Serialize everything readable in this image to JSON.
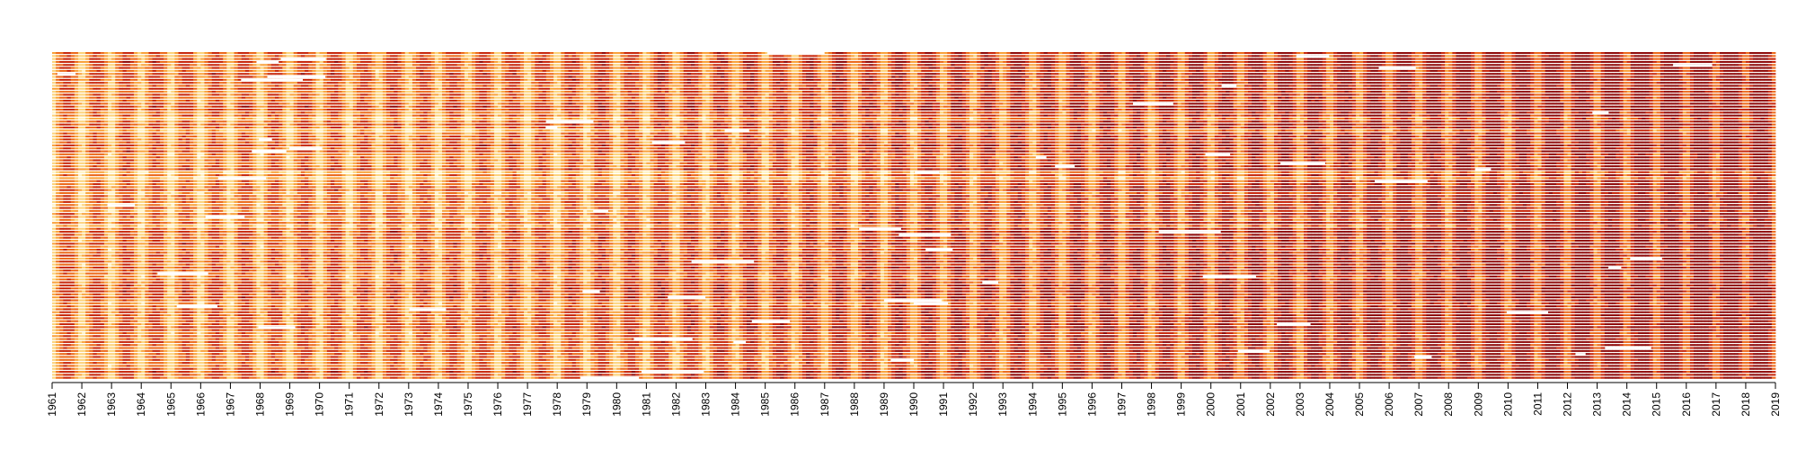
{
  "chart_data": {
    "type": "heatmap",
    "title": "",
    "xlabel": "",
    "ylabel": "",
    "x_range": [
      1961,
      2019
    ],
    "tick_labels": [
      "1961",
      "1962",
      "1963",
      "1964",
      "1965",
      "1966",
      "1967",
      "1968",
      "1969",
      "1970",
      "1971",
      "1972",
      "1973",
      "1974",
      "1975",
      "1976",
      "1977",
      "1978",
      "1979",
      "1980",
      "1981",
      "1982",
      "1983",
      "1984",
      "1985",
      "1986",
      "1987",
      "1988",
      "1989",
      "1990",
      "1991",
      "1992",
      "1993",
      "1994",
      "1995",
      "1996",
      "1997",
      "1998",
      "1999",
      "2000",
      "2001",
      "2002",
      "2003",
      "2004",
      "2005",
      "2006",
      "2007",
      "2008",
      "2009",
      "2010",
      "2011",
      "2012",
      "2013",
      "2014",
      "2015",
      "2016",
      "2017",
      "2018",
      "2019"
    ],
    "row_count": 110,
    "color_scale": [
      "#fff3c4",
      "#fcd37a",
      "#f9a23b",
      "#ec6a1c",
      "#c8290e",
      "#8f0c0c"
    ],
    "missing_color": "#ffffff",
    "trend": "values increase toward later years; each year shows a light-to-dark seasonal cycle",
    "yearly_mean_intensity": [
      0.45,
      0.44,
      0.46,
      0.45,
      0.44,
      0.45,
      0.46,
      0.45,
      0.47,
      0.46,
      0.45,
      0.47,
      0.46,
      0.47,
      0.48,
      0.47,
      0.46,
      0.48,
      0.5,
      0.49,
      0.51,
      0.53,
      0.52,
      0.54,
      0.53,
      0.55,
      0.56,
      0.55,
      0.57,
      0.58,
      0.59,
      0.58,
      0.6,
      0.59,
      0.61,
      0.62,
      0.61,
      0.63,
      0.64,
      0.63,
      0.65,
      0.66,
      0.67,
      0.66,
      0.68,
      0.69,
      0.68,
      0.7,
      0.71,
      0.7,
      0.72,
      0.73,
      0.74,
      0.75,
      0.76,
      0.77,
      0.78,
      0.79,
      0.8
    ]
  }
}
